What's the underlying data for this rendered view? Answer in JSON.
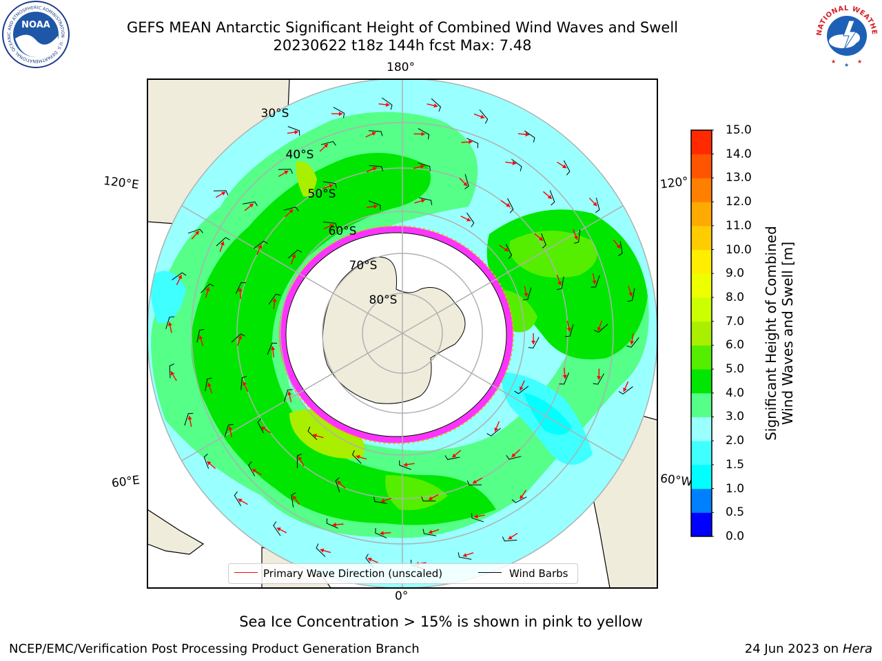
{
  "header": {
    "title_line1": "GEFS MEAN Antarctic Significant Height of Combined Wind Waves and Swell",
    "title_line2": "20230622 t18z 144h fcst   Max: 7.48"
  },
  "logos": {
    "noaa": {
      "text": "NOAA",
      "ring_text": "NATIONAL OCEANIC AND ATMOSPHERIC ADMINISTRATION · U.S. DEPARTMENT OF COMMERCE"
    },
    "nws": {
      "ring_text": "NATIONAL WEATHER SERVICE"
    }
  },
  "map": {
    "longitude_labels": {
      "top": "180°",
      "bottom": "0°",
      "left_upper": "120°E",
      "left_lower": "60°E",
      "right_upper": "120°",
      "right_lower": "60°W"
    },
    "latitude_labels": [
      "30°S",
      "40°S",
      "50°S",
      "60°S",
      "70°S",
      "80°S"
    ],
    "colors": {
      "land": "#efecdc",
      "ice_free_land": "#ffffff",
      "sea_ice": "#ff33ff",
      "wave_arrow": "#ff0000",
      "wind_barb": "#000000"
    }
  },
  "colorbar": {
    "label": "Significant Height of Combined\nWind Waves and Swell [m]",
    "ticks": [
      "0.0",
      "0.5",
      "1.0",
      "1.5",
      "2.0",
      "3.0",
      "4.0",
      "5.0",
      "6.0",
      "7.0",
      "8.0",
      "9.0",
      "10.0",
      "11.0",
      "12.0",
      "13.0",
      "14.0",
      "15.0"
    ],
    "colors": [
      "#0000ff",
      "#0080ff",
      "#00ffff",
      "#40ffff",
      "#99ffff",
      "#55ff88",
      "#00e600",
      "#55ee00",
      "#aaee00",
      "#ccff00",
      "#eeff00",
      "#ffee00",
      "#ffcc00",
      "#ffaa00",
      "#ff8000",
      "#ff5500",
      "#ff2a00"
    ]
  },
  "legend": {
    "item1": "Primary Wave Direction (unscaled)",
    "item2": "Wind Barbs",
    "item1_color": "#ff0000",
    "item2_color": "#000000"
  },
  "footer": {
    "note": "Sea Ice Concentration > 15% is shown in pink to yellow",
    "credit": "NCEP/EMC/Verification Post Processing Product Generation Branch",
    "date": "24 Jun 2023 on",
    "machine": "Hera"
  }
}
